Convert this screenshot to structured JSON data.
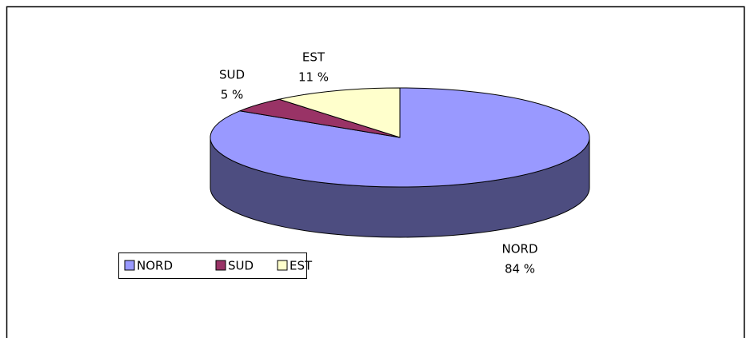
{
  "chart_data": {
    "type": "pie",
    "categories": [
      "NORD",
      "SUD",
      "EST"
    ],
    "values": [
      84,
      5,
      11
    ],
    "value_labels": [
      "84 %",
      "5 %",
      "11 %"
    ],
    "colors": [
      "#9999ff",
      "#993366",
      "#ffffcc"
    ],
    "legend": "bottom-left"
  }
}
